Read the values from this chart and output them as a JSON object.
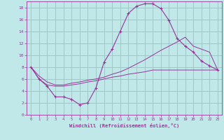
{
  "xlabel": "Windchill (Refroidissement éolien,°C)",
  "bg_color": "#c0e8e8",
  "grid_color": "#a0c8c8",
  "line_color": "#993399",
  "xlim": [
    -0.5,
    23.5
  ],
  "ylim": [
    0,
    19
  ],
  "xticks": [
    0,
    1,
    2,
    3,
    4,
    5,
    6,
    7,
    8,
    9,
    10,
    11,
    12,
    13,
    14,
    15,
    16,
    17,
    18,
    19,
    20,
    21,
    22,
    23
  ],
  "yticks": [
    0,
    2,
    4,
    6,
    8,
    10,
    12,
    14,
    16,
    18
  ],
  "line1_x": [
    0,
    1,
    2,
    3,
    4,
    5,
    6,
    7,
    8,
    9,
    10,
    11,
    12,
    13,
    14,
    15,
    16,
    17,
    18,
    19,
    20,
    21,
    22,
    23
  ],
  "line1_y": [
    8.0,
    6.0,
    4.8,
    3.0,
    3.0,
    2.6,
    1.7,
    2.0,
    4.5,
    8.8,
    11.0,
    14.0,
    17.0,
    18.2,
    18.6,
    18.6,
    17.8,
    15.8,
    12.8,
    11.5,
    10.5,
    9.0,
    8.2,
    7.5
  ],
  "line2_x": [
    0,
    1,
    2,
    3,
    4,
    5,
    6,
    7,
    8,
    9,
    10,
    11,
    12,
    13,
    14,
    15,
    16,
    17,
    18,
    19,
    20,
    21,
    22,
    23
  ],
  "line2_y": [
    8.0,
    6.5,
    5.5,
    5.0,
    5.0,
    5.3,
    5.5,
    5.8,
    6.0,
    6.3,
    6.8,
    7.2,
    7.8,
    8.5,
    9.2,
    10.0,
    10.8,
    11.5,
    12.2,
    13.0,
    11.5,
    11.0,
    10.5,
    7.5
  ],
  "line3_x": [
    0,
    1,
    2,
    3,
    4,
    5,
    6,
    7,
    8,
    9,
    10,
    11,
    12,
    13,
    14,
    15,
    16,
    17,
    18,
    19,
    20,
    21,
    22,
    23
  ],
  "line3_y": [
    8.0,
    6.0,
    5.0,
    4.8,
    4.8,
    5.0,
    5.2,
    5.5,
    5.7,
    6.0,
    6.3,
    6.5,
    6.8,
    7.0,
    7.2,
    7.5,
    7.5,
    7.5,
    7.5,
    7.5,
    7.5,
    7.5,
    7.5,
    7.5
  ]
}
